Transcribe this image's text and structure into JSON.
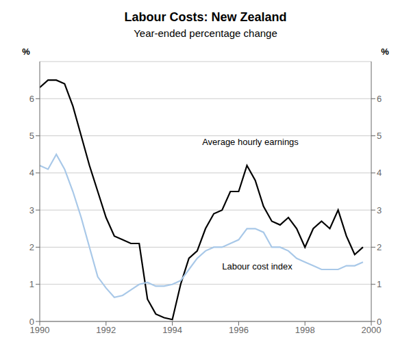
{
  "chart_data": {
    "type": "line",
    "title": "Labour Costs: New Zealand",
    "subtitle": "Year-ended percentage change",
    "ylabel": "%",
    "y2label": "%",
    "xlim": [
      1990,
      2000
    ],
    "xticks": [
      1990,
      1992,
      1994,
      1996,
      1998,
      2000
    ],
    "ylim": [
      0,
      7
    ],
    "yticks": [
      0,
      1,
      2,
      3,
      4,
      5,
      6
    ],
    "y2lim": [
      0,
      7
    ],
    "y2ticks": [
      0,
      1,
      2,
      3,
      4,
      5,
      6
    ],
    "grid": "y",
    "x": [
      1990.0,
      1990.25,
      1990.5,
      1990.75,
      1991.0,
      1991.25,
      1991.5,
      1991.75,
      1992.0,
      1992.25,
      1992.5,
      1992.75,
      1993.0,
      1993.25,
      1993.5,
      1993.75,
      1994.0,
      1994.25,
      1994.5,
      1994.75,
      1995.0,
      1995.25,
      1995.5,
      1995.75,
      1996.0,
      1996.25,
      1996.5,
      1996.75,
      1997.0,
      1997.25,
      1997.5,
      1997.75,
      1998.0,
      1998.25,
      1998.5,
      1998.75,
      1999.0,
      1999.25,
      1999.5,
      1999.75
    ],
    "series": [
      {
        "color": "#000000",
        "values": [
          6.3,
          6.5,
          6.5,
          6.4,
          5.8,
          5.0,
          4.2,
          3.5,
          2.8,
          2.3,
          2.2,
          2.1,
          2.1,
          0.6,
          0.2,
          0.1,
          0.05,
          1.0,
          1.7,
          1.9,
          2.5,
          2.9,
          3.0,
          3.5,
          3.5,
          4.2,
          3.8,
          3.1,
          2.7,
          2.6,
          2.8,
          2.5,
          2.0,
          2.5,
          2.7,
          2.5,
          3.0,
          2.3,
          1.8,
          2.0
        ]
      },
      {
        "color": "#a8c8e8",
        "values": [
          4.2,
          4.1,
          4.5,
          4.1,
          3.5,
          2.8,
          2.0,
          1.2,
          0.9,
          0.65,
          0.7,
          0.85,
          1.0,
          1.05,
          0.95,
          0.95,
          1.0,
          1.1,
          1.4,
          1.7,
          1.9,
          2.0,
          2.0,
          2.1,
          2.2,
          2.5,
          2.5,
          2.4,
          2.0,
          2.0,
          1.9,
          1.7,
          1.6,
          1.5,
          1.4,
          1.4,
          1.4,
          1.5,
          1.5,
          1.6
        ]
      }
    ],
    "annotations": [
      {
        "text": "Average hourly earnings",
        "x": 1994.9,
        "y": 4.7
      },
      {
        "text": "Labour cost index",
        "x": 1995.5,
        "y": 1.35
      }
    ]
  }
}
